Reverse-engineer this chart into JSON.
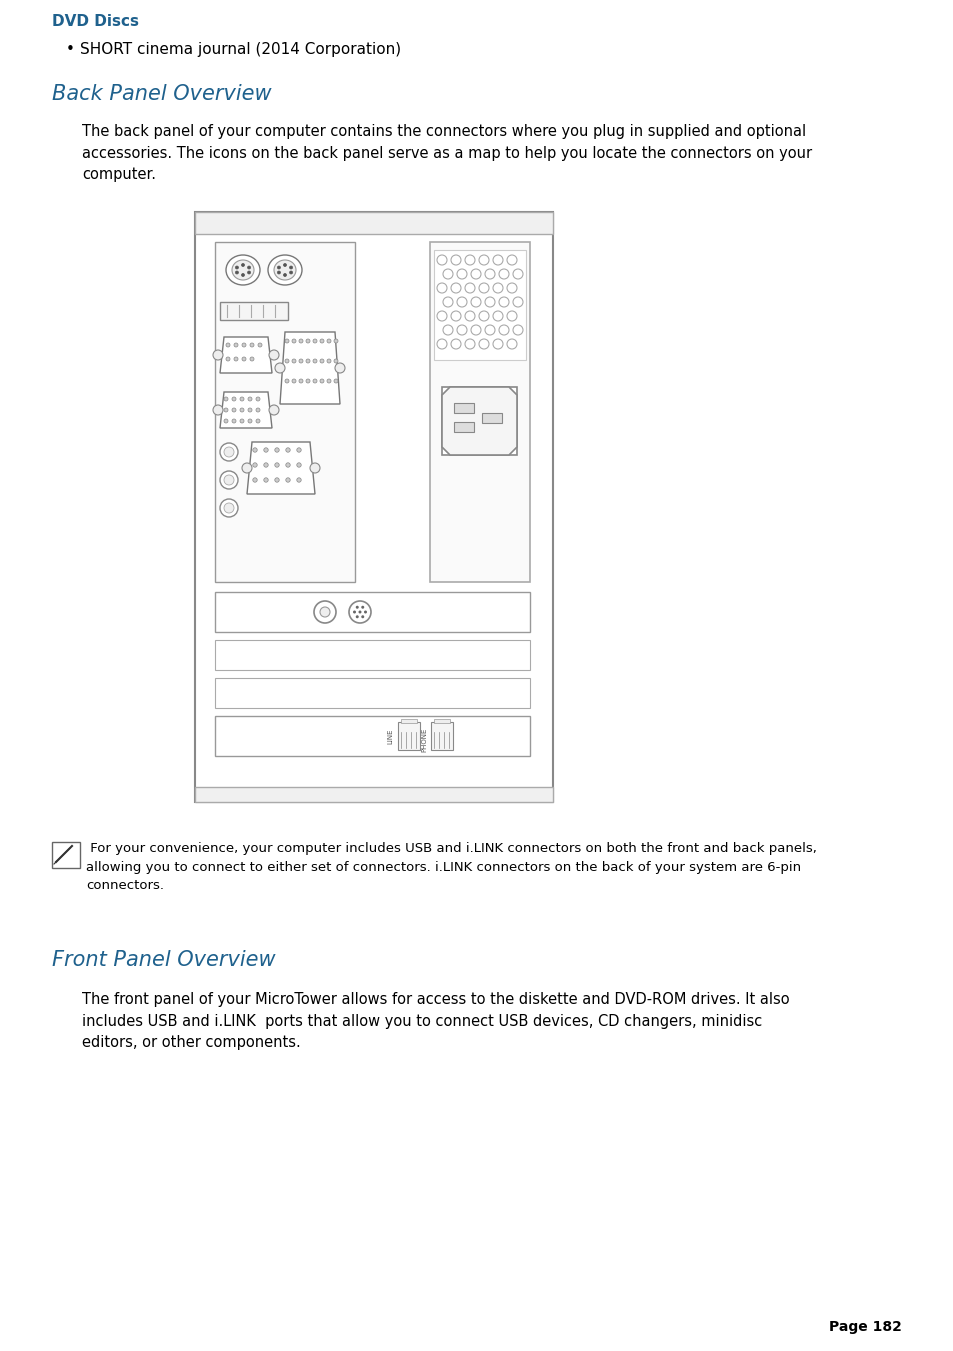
{
  "title_dvd": "DVD Discs",
  "bullet_dvd": "SHORT cinema journal (2014 Corporation)",
  "title_back": "Back Panel Overview",
  "body_back": "The back panel of your computer contains the connectors where you plug in supplied and optional\naccessories. The icons on the back panel serve as a map to help you locate the connectors on your\ncomputer.",
  "note_text": " For your convenience, your computer includes USB and i.LINK connectors on both the front and back panels,\nallowing you to connect to either set of connectors. i.LINK connectors on the back of your system are 6-pin\nconnectors.",
  "title_front": "Front Panel Overview",
  "body_front": "The front panel of your MicroTower allows for access to the diskette and DVD-ROM drives. It also\nincludes USB and i.LINK  ports that allow you to connect USB devices, CD changers, minidisc\neditors, or other components.",
  "page_num": "Page 182",
  "heading_color": "#1f618d",
  "title_dvd_color": "#1f618d",
  "body_color": "#000000",
  "bg_color": "#ffffff",
  "lm": 52,
  "ind": 82
}
